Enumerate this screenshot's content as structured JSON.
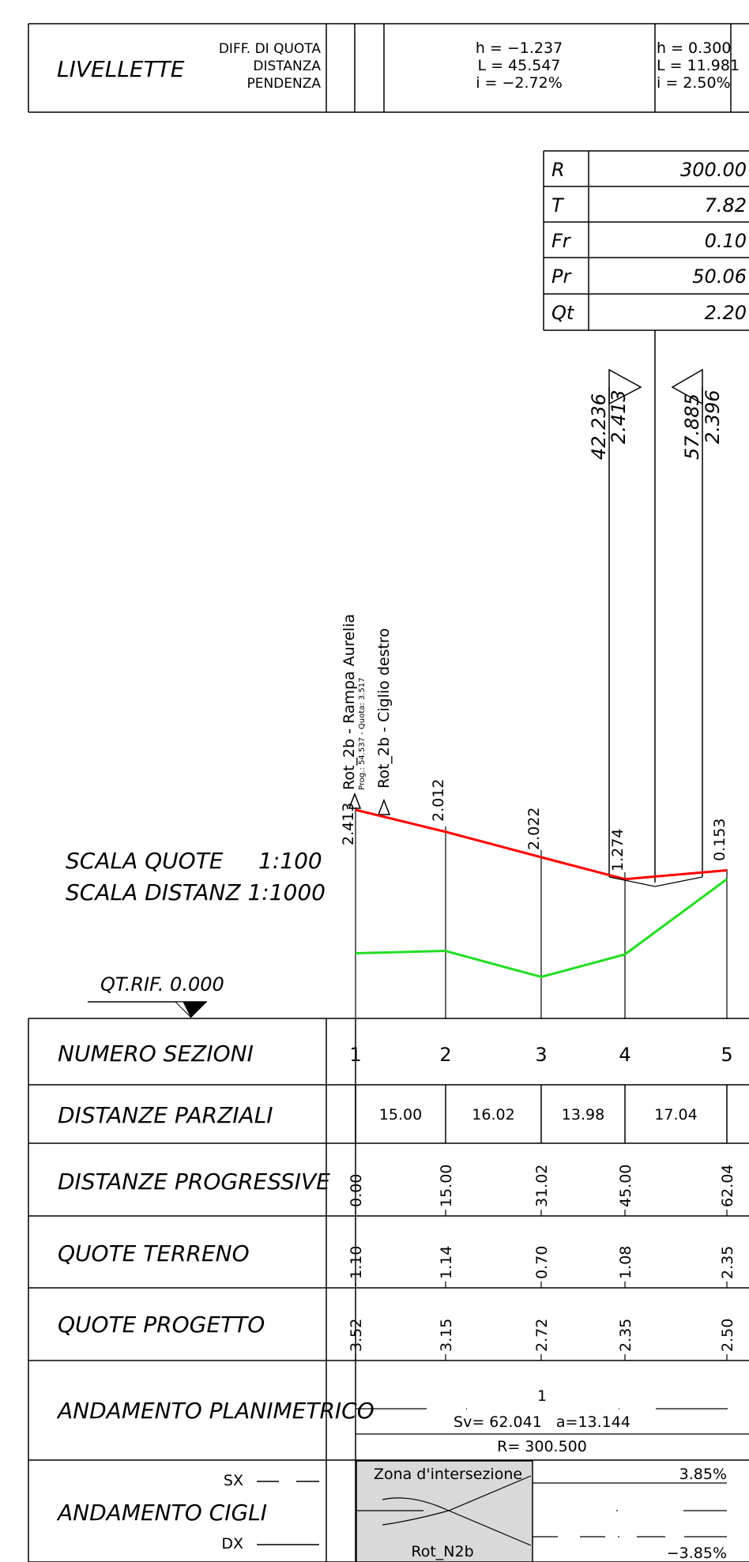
{
  "livellette": {
    "title": "LIVELLETTE",
    "labels": [
      "DIFF. DI QUOTA",
      "DISTANZA",
      "PENDENZA"
    ],
    "segments": [
      {
        "h": "h = −1.237",
        "L": "L = 45.547",
        "i": "i = −2.72%"
      },
      {
        "h": "h = 0.300",
        "L": "L = 11.981",
        "i": "i = 2.50%"
      }
    ]
  },
  "curve_table": [
    {
      "label": "R",
      "value": "300.00"
    },
    {
      "label": "T",
      "value": "7.82"
    },
    {
      "label": "Fr",
      "value": "0.10"
    },
    {
      "label": "Pr",
      "value": "50.06"
    },
    {
      "label": "Qt",
      "value": "2.20"
    }
  ],
  "vertical_markers": [
    {
      "prog": "42.236",
      "quota": "2.413"
    },
    {
      "prog": "57.885",
      "quota": "2.396"
    }
  ],
  "annotations": {
    "rampa": "Rot_2b - Rampa Aurelia",
    "rampa_sub": "Prog.: 54.537 - Quota: 3.517",
    "ciglio": "Rot_2b - Ciglio destro"
  },
  "scale": {
    "quote": "SCALA QUOTE     1:100",
    "distanz": "SCALA DISTANZ 1:1000",
    "qt_rif": "QT.RIF. 0.000"
  },
  "profile_labels": [
    "2.413",
    "2.012",
    "2.022",
    "1.274",
    "0.153"
  ],
  "chart_data": {
    "type": "line",
    "x": [
      0.0,
      15.0,
      31.02,
      45.0,
      62.04
    ],
    "series": [
      {
        "color": "#ff0000",
        "values": [
          3.52,
          3.15,
          2.72,
          2.35,
          2.5
        ]
      },
      {
        "color": "#22dd22",
        "values": [
          1.1,
          1.14,
          0.7,
          1.08,
          2.35
        ]
      }
    ]
  },
  "rows": {
    "numero_sezioni": {
      "label": "NUMERO SEZIONI",
      "values": [
        "1",
        "2",
        "3",
        "4",
        "5"
      ]
    },
    "distanze_parziali": {
      "label": "DISTANZE PARZIALI",
      "values": [
        "15.00",
        "16.02",
        "13.98",
        "17.04"
      ]
    },
    "distanze_progressive": {
      "label": "DISTANZE PROGRESSIVE",
      "values": [
        "0.00",
        "15.00",
        "31.02",
        "45.00",
        "62.04"
      ]
    },
    "quote_terreno": {
      "label": "QUOTE TERRENO",
      "values": [
        "1.10",
        "1.14",
        "0.70",
        "1.08",
        "2.35"
      ]
    },
    "quote_progetto": {
      "label": "QUOTE PROGETTO",
      "values": [
        "3.52",
        "3.15",
        "2.72",
        "2.35",
        "2.50"
      ]
    },
    "andamento_planimetrico": {
      "label": "ANDAMENTO PLANIMETRICO",
      "num": "1",
      "sv": "Sv= 62.041   a=13.144",
      "r": "R= 300.500"
    },
    "andamento_cigli": {
      "label": "ANDAMENTO CIGLI",
      "sx": "SX",
      "dx": "DX",
      "zona": "Zona d'intersezione",
      "rot": "Rot_N2b",
      "pct_top": "3.85%",
      "pct_bot": "−3.85%"
    }
  },
  "colors": {
    "project_line": "#ff0000",
    "terrain_line": "#22dd22"
  }
}
